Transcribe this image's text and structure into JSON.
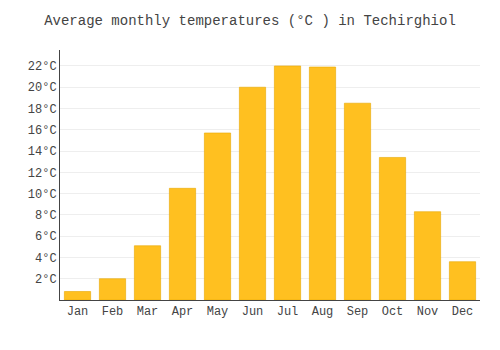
{
  "chart_data": {
    "type": "bar",
    "title": "Average monthly temperatures (°C ) in Techirghiol",
    "categories": [
      "Jan",
      "Feb",
      "Mar",
      "Apr",
      "May",
      "Jun",
      "Jul",
      "Aug",
      "Sep",
      "Oct",
      "Nov",
      "Dec"
    ],
    "values": [
      0.8,
      2.0,
      5.1,
      10.5,
      15.7,
      20.0,
      22.0,
      21.9,
      18.5,
      13.4,
      8.3,
      3.6
    ],
    "color": "#FFC020",
    "ylim": [
      0,
      23.5
    ],
    "yticks": [
      {
        "value": 2,
        "label": "2°C"
      },
      {
        "value": 4,
        "label": "4°C"
      },
      {
        "value": 6,
        "label": "6°C"
      },
      {
        "value": 8,
        "label": "8°C"
      },
      {
        "value": 10,
        "label": "10°C"
      },
      {
        "value": 12,
        "label": "12°C"
      },
      {
        "value": 14,
        "label": "14°C"
      },
      {
        "value": 16,
        "label": "16°C"
      },
      {
        "value": 18,
        "label": "18°C"
      },
      {
        "value": 20,
        "label": "20°C"
      },
      {
        "value": 22,
        "label": "22°C"
      }
    ],
    "grid": true
  }
}
